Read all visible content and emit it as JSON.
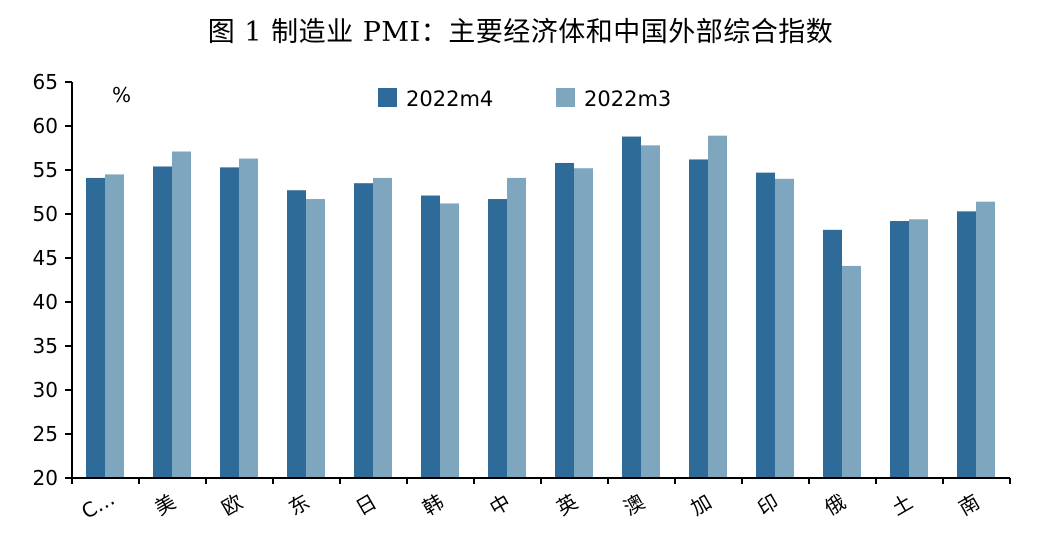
{
  "chart_data": {
    "type": "bar",
    "title": "图 1 制造业 PMI：主要经济体和中国外部综合指数",
    "ylabel": "%",
    "ylim": [
      20,
      65
    ],
    "yticks": [
      20,
      25,
      30,
      35,
      40,
      45,
      50,
      55,
      60,
      65
    ],
    "grid": false,
    "legend_position": "top-center",
    "categories": [
      "C…",
      "美",
      "欧",
      "东",
      "日",
      "韩",
      "中",
      "英",
      "澳",
      "加",
      "印",
      "俄",
      "土",
      "南"
    ],
    "series": [
      {
        "name": "2022m4",
        "color": "#2e6b99",
        "values": [
          54.1,
          55.4,
          55.3,
          52.7,
          53.5,
          52.1,
          51.7,
          55.8,
          58.8,
          56.2,
          54.7,
          48.2,
          49.2,
          50.3
        ]
      },
      {
        "name": "2022m3",
        "color": "#7ea6be",
        "values": [
          54.5,
          57.1,
          56.3,
          51.7,
          54.1,
          51.2,
          54.1,
          55.2,
          57.8,
          58.9,
          54.0,
          44.1,
          49.4,
          51.4
        ]
      }
    ]
  }
}
